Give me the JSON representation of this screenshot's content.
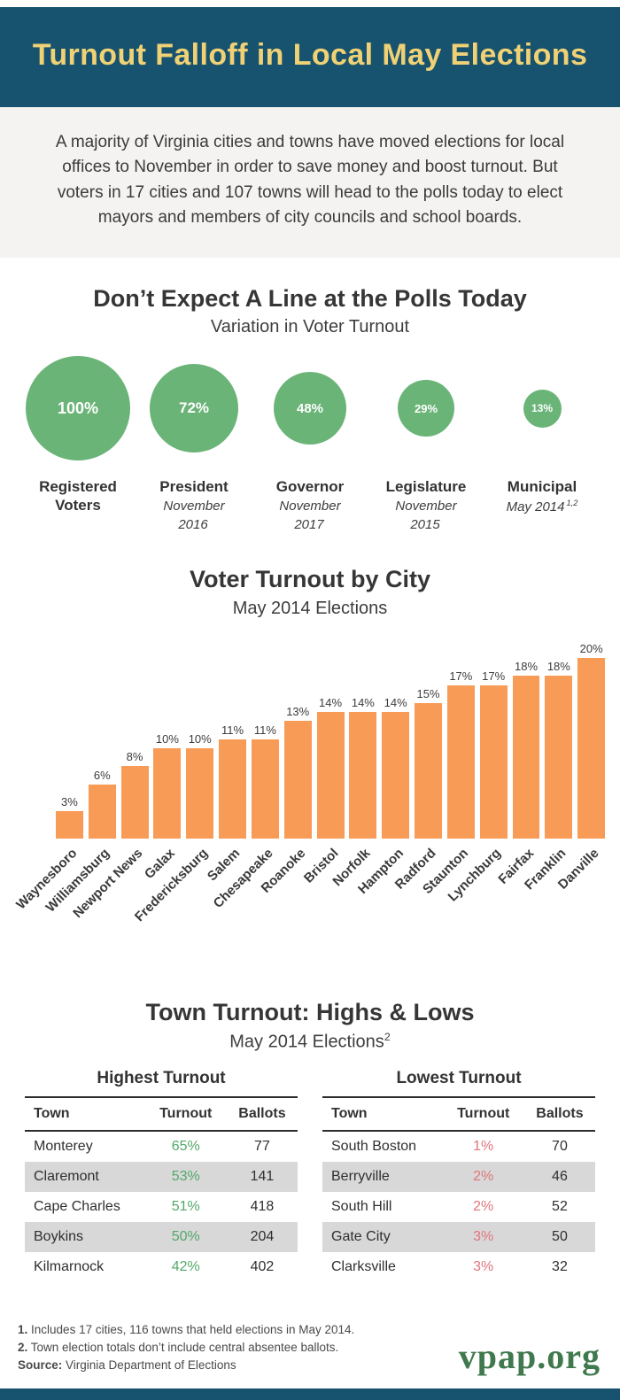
{
  "page": {
    "header_title": "Turnout Falloff in Local May Elections",
    "intro": "A majority of Virginia cities and towns have moved elections for local offices to November in order to save money and boost turnout. But voters in 17 cities and 107 towns will head to the polls today to elect mayors and members of city councils and school boards.",
    "footnotes": [
      {
        "marker": "1.",
        "text": "Includes 17 cities, 116 towns that held elections in May 2014."
      },
      {
        "marker": "2.",
        "text": "Town election totals don’t include central absentee ballots."
      }
    ],
    "source_label": "Source:",
    "source_text": "Virginia Department of Elections",
    "logo": "vpap.org",
    "colors": {
      "header_bg": "#17536e",
      "header_title": "#f0d175",
      "bubble_green": "#6ab478",
      "bar_orange": "#f79b57",
      "high_green": "#53a86a",
      "low_red": "#e0757d",
      "logo_green": "#40794d"
    }
  },
  "chart_data": [
    {
      "type": "bubble",
      "title": "Don’t Expect A Line at the Polls Today",
      "subtitle": "Variation in Voter Turnout",
      "categories": [
        "Registered Voters",
        "President",
        "Governor",
        "Legislature",
        "Municipal"
      ],
      "sublabels": [
        "",
        "November 2016",
        "November 2017",
        "November 2015",
        "May 2014"
      ],
      "markers": [
        "",
        "",
        "",
        "",
        "1,2"
      ],
      "values": [
        100,
        72,
        48,
        29,
        13
      ],
      "labels": [
        "100%",
        "72%",
        "48%",
        "29%",
        "13%"
      ],
      "color": "#6ab478"
    },
    {
      "type": "bar",
      "title": "Voter Turnout by City",
      "subtitle": "May 2014 Elections",
      "categories": [
        "Waynesboro",
        "Williamsburg",
        "Newport News",
        "Galax",
        "Fredericksburg",
        "Salem",
        "Chesapeake",
        "Roanoke",
        "Bristol",
        "Norfolk",
        "Hampton",
        "Radford",
        "Staunton",
        "Lynchburg",
        "Fairfax",
        "Franklin",
        "Danville"
      ],
      "values": [
        3,
        6,
        8,
        10,
        10,
        11,
        11,
        13,
        14,
        14,
        14,
        15,
        17,
        17,
        18,
        18,
        20
      ],
      "labels": [
        "3%",
        "6%",
        "8%",
        "10%",
        "10%",
        "11%",
        "11%",
        "13%",
        "14%",
        "14%",
        "14%",
        "15%",
        "17%",
        "17%",
        "18%",
        "18%",
        "20%"
      ],
      "ylim": [
        0,
        20
      ],
      "xlabel": "",
      "ylabel": "",
      "color": "#f79b57"
    },
    {
      "type": "table",
      "title": "Town Turnout: Highs & Lows",
      "subtitle": "May 2014 Elections",
      "subtitle_marker": "2",
      "tables": [
        {
          "title": "Highest Turnout",
          "headers": [
            "Town",
            "Turnout",
            "Ballots"
          ],
          "rows": [
            [
              "Monterey",
              "65%",
              "77"
            ],
            [
              "Claremont",
              "53%",
              "141"
            ],
            [
              "Cape Charles",
              "51%",
              "418"
            ],
            [
              "Boykins",
              "50%",
              "204"
            ],
            [
              "Kilmarnock",
              "42%",
              "402"
            ]
          ]
        },
        {
          "title": "Lowest Turnout",
          "headers": [
            "Town",
            "Turnout",
            "Ballots"
          ],
          "rows": [
            [
              "South Boston",
              "1%",
              "70"
            ],
            [
              "Berryville",
              "2%",
              "46"
            ],
            [
              "South Hill",
              "2%",
              "52"
            ],
            [
              "Gate City",
              "3%",
              "50"
            ],
            [
              "Clarksville",
              "3%",
              "32"
            ]
          ]
        }
      ]
    }
  ]
}
